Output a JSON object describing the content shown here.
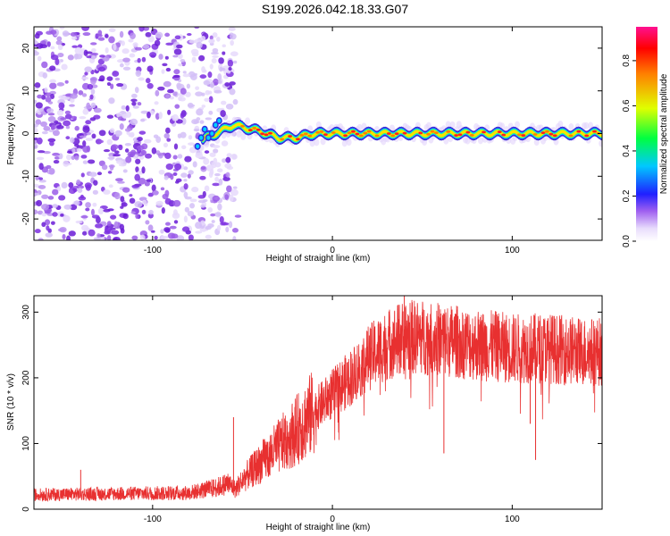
{
  "title": "S199.2026.042.18.33.G07",
  "chart_data": [
    {
      "type": "heatmap",
      "name": "spectrogram",
      "xlabel": "Height of straight line (km)",
      "ylabel": "Frequency (Hz)",
      "xlim": [
        -166,
        150
      ],
      "ylim": [
        -25,
        25
      ],
      "xticks": [
        -100,
        0,
        100
      ],
      "xtick_labels": [
        "-100",
        "0",
        "100"
      ],
      "yticks": [
        -20,
        -10,
        0,
        10,
        20
      ],
      "ytick_labels": [
        "-20",
        "-10",
        "0",
        "10",
        "20"
      ],
      "description_points": {
        "noise_region_x": [
          -166,
          -60
        ],
        "onset_x": -75,
        "ridge_x": [
          -75,
          -70,
          -65,
          -60,
          -55,
          -50,
          -40,
          -30,
          -20,
          -10,
          0,
          20,
          40,
          60,
          80,
          100,
          120,
          150
        ],
        "ridge_freq": [
          -2,
          -1,
          0,
          1,
          2,
          1.5,
          0.5,
          -1,
          -1,
          0,
          0,
          0,
          0,
          0,
          0,
          0,
          0,
          0
        ]
      },
      "colorbar": {
        "label": "Normalized spectral amplitude",
        "range": [
          0,
          0.95
        ],
        "ticks": [
          0.0,
          0.2,
          0.4,
          0.6,
          0.8
        ],
        "tick_labels": [
          "0.0",
          "0.2",
          "0.4",
          "0.6",
          "0.8"
        ],
        "colors": [
          "#ffffff",
          "#d8c8f8",
          "#8a2be2",
          "#3030ff",
          "#00e0ff",
          "#00ff00",
          "#ffff00",
          "#ff8000",
          "#ff0000",
          "#ff1493"
        ]
      }
    },
    {
      "type": "line",
      "name": "snr",
      "xlabel": "Height of straight line (km)",
      "ylabel": "SNR (10 * v/v)",
      "xlim": [
        -166,
        150
      ],
      "ylim": [
        0,
        325
      ],
      "xticks": [
        -100,
        0,
        100
      ],
      "xtick_labels": [
        "-100",
        "0",
        "100"
      ],
      "yticks": [
        0,
        100,
        200,
        300
      ],
      "ytick_labels": [
        "0",
        "100",
        "200",
        "300"
      ],
      "color": "#e83030",
      "trend": {
        "x": [
          -166,
          -80,
          -70,
          -62,
          -58,
          -54,
          -50,
          -40,
          -30,
          -20,
          -10,
          0,
          10,
          20,
          30,
          40,
          50,
          60,
          70,
          80,
          90,
          100,
          110,
          120,
          130,
          140,
          150
        ],
        "y": [
          22,
          25,
          30,
          35,
          40,
          30,
          45,
          70,
          95,
          120,
          150,
          175,
          200,
          230,
          250,
          262,
          262,
          258,
          255,
          250,
          248,
          245,
          245,
          245,
          242,
          240,
          240
        ]
      },
      "spikes": [
        {
          "x": -140,
          "y": 60
        },
        {
          "x": -55,
          "y": 140
        },
        {
          "x": 40,
          "y": 325
        },
        {
          "x": 50,
          "y": 300
        },
        {
          "x": 62,
          "y": 85
        },
        {
          "x": 113,
          "y": 75
        },
        {
          "x": 110,
          "y": 130
        }
      ]
    }
  ]
}
